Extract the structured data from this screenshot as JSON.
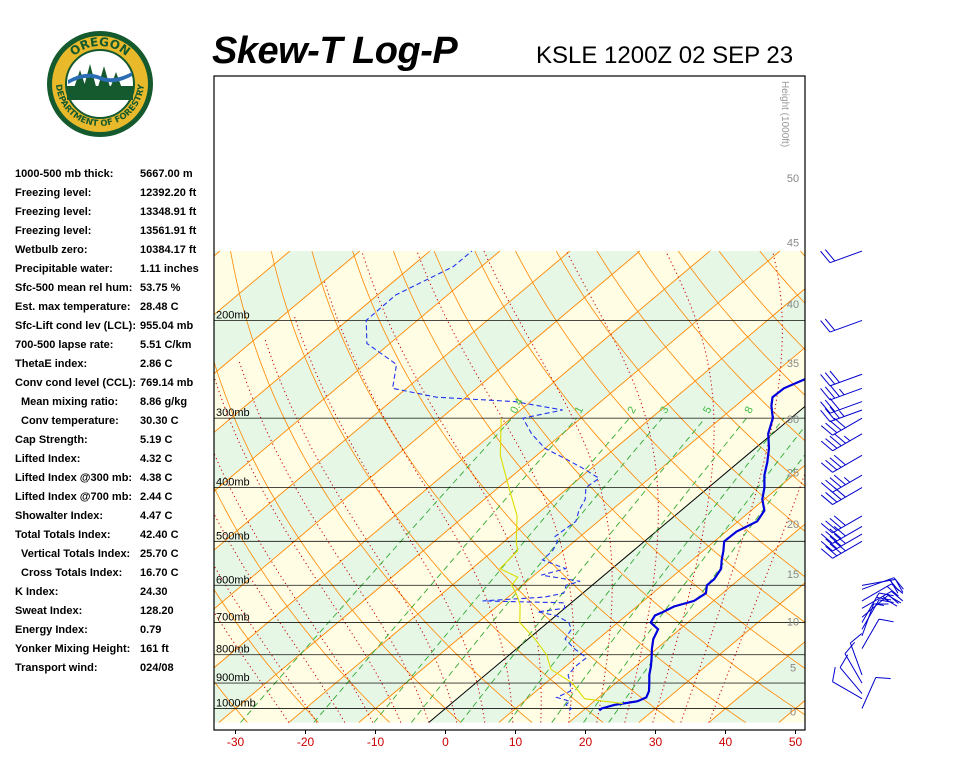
{
  "header": {
    "title": "Skew-T Log-P",
    "station": "KSLE 1200Z 02 SEP 23",
    "logo": {
      "line1": "OREGON",
      "line2": "DEPARTMENT OF FORESTRY"
    }
  },
  "stats": [
    {
      "label": "1000-500 mb thick:",
      "value": "5667.00 m"
    },
    {
      "label": "Freezing level:",
      "value": "12392.20 ft"
    },
    {
      "label": "Freezing level:",
      "value": "13348.91 ft"
    },
    {
      "label": "Freezing level:",
      "value": "13561.91 ft"
    },
    {
      "label": "Wetbulb zero:",
      "value": "10384.17 ft"
    },
    {
      "label": "Precipitable water:",
      "value": "1.11 inches"
    },
    {
      "label": "Sfc-500 mean rel hum:",
      "value": "53.75 %"
    },
    {
      "label": "Est. max temperature:",
      "value": "28.48 C"
    },
    {
      "label": "Sfc-Lift cond lev (LCL):",
      "value": "955.04 mb"
    },
    {
      "label": "700-500 lapse rate:",
      "value": "5.51 C/km"
    },
    {
      "label": "ThetaE index:",
      "value": "2.86 C"
    },
    {
      "label": "Conv cond level (CCL):",
      "value": "769.14 mb"
    },
    {
      "label": "Mean mixing ratio:",
      "value": "8.86 g/kg",
      "indent": true
    },
    {
      "label": "Conv temperature:",
      "value": "30.30 C",
      "indent": true
    },
    {
      "label": "Cap Strength:",
      "value": "5.19 C"
    },
    {
      "label": "Lifted Index:",
      "value": "4.32 C"
    },
    {
      "label": "Lifted Index @300 mb:",
      "value": "4.38 C"
    },
    {
      "label": "Lifted Index @700 mb:",
      "value": "2.44 C"
    },
    {
      "label": "Showalter Index:",
      "value": "4.47 C"
    },
    {
      "label": "Total Totals Index:",
      "value": "42.40 C"
    },
    {
      "label": "Vertical Totals Index:",
      "value": "25.70 C",
      "indent": true
    },
    {
      "label": "Cross Totals Index:",
      "value": "16.70 C",
      "indent": true
    },
    {
      "label": "K Index:",
      "value": "24.30"
    },
    {
      "label": "Sweat Index:",
      "value": "128.20"
    },
    {
      "label": "Energy Index:",
      "value": "0.79"
    },
    {
      "label": "Yonker Mixing Height:",
      "value": "161 ft"
    },
    {
      "label": "Transport wind:",
      "value": "024/08"
    }
  ],
  "chart_data": {
    "type": "line",
    "title": "Skew-T Log-P",
    "x_axis": {
      "ticks": [
        -30,
        -20,
        -10,
        0,
        10,
        20,
        30,
        40,
        50
      ],
      "unit": "C"
    },
    "pressure_levels": [
      {
        "p": 200,
        "label": "200mb"
      },
      {
        "p": 300,
        "label": "300mb"
      },
      {
        "p": 400,
        "label": "400mb"
      },
      {
        "p": 500,
        "label": "500mb"
      },
      {
        "p": 600,
        "label": "600mb"
      },
      {
        "p": 700,
        "label": "700mb"
      },
      {
        "p": 800,
        "label": "800mb"
      },
      {
        "p": 900,
        "label": "900mb"
      },
      {
        "p": 1000,
        "label": "1000mb"
      }
    ],
    "height_axis": {
      "label": "Height (1000ft)",
      "ticks": [
        0,
        5,
        10,
        15,
        20,
        25,
        30,
        35,
        40,
        45,
        50
      ]
    },
    "mixing_ratio_labels": [
      "0.4",
      "1",
      "2",
      "3",
      "5",
      "8"
    ],
    "colors": {
      "temperature": "#0000dd",
      "dewpoint": "#2233ee",
      "parcel": "#dddd00",
      "isotherm": "#ff8800",
      "dry_adiabat": "#ff8800",
      "moist_adiabat": "#cc0000",
      "mixing_ratio": "#33aa33",
      "band_green": "#e6f7e6",
      "band_yellow": "#fffde4",
      "wind_barb": "#0000cc",
      "tick_label": "#cc0000"
    },
    "series": [
      {
        "role": "temperature",
        "points": [
          [
            1008,
            22.3
          ],
          [
            1000,
            22.3
          ],
          [
            985,
            23.5
          ],
          [
            970,
            26.2
          ],
          [
            955,
            26.8
          ],
          [
            930,
            26.1
          ],
          [
            900,
            24.8
          ],
          [
            870,
            23.4
          ],
          [
            840,
            22.2
          ],
          [
            810,
            20.8
          ],
          [
            780,
            19.3
          ],
          [
            750,
            17.9
          ],
          [
            720,
            16.9
          ],
          [
            700,
            14.7
          ],
          [
            680,
            14.1
          ],
          [
            670,
            14.7
          ],
          [
            655,
            15.3
          ],
          [
            640,
            17.2
          ],
          [
            620,
            17.6
          ],
          [
            600,
            16.4
          ],
          [
            585,
            16.4
          ],
          [
            560,
            15.6
          ],
          [
            540,
            14.2
          ],
          [
            520,
            12.9
          ],
          [
            500,
            11.4
          ],
          [
            480,
            11.5
          ],
          [
            460,
            12.7
          ],
          [
            440,
            11.9
          ],
          [
            420,
            9.7
          ],
          [
            400,
            8.0
          ],
          [
            380,
            5.9
          ],
          [
            360,
            4.1
          ],
          [
            340,
            2.0
          ],
          [
            320,
            -0.6
          ],
          [
            300,
            -2.6
          ],
          [
            285,
            -4.9
          ],
          [
            275,
            -6.2
          ],
          [
            265,
            -6.1
          ],
          [
            255,
            -4.6
          ],
          [
            240,
            -3.5
          ],
          [
            220,
            -2.6
          ],
          [
            200,
            -1.7
          ],
          [
            180,
            -1.3
          ],
          [
            160,
            0.2
          ],
          [
            150,
            0.8
          ]
        ]
      },
      {
        "role": "dewpoint",
        "points": [
          [
            1008,
            18.0
          ],
          [
            1000,
            18.0
          ],
          [
            985,
            16.6
          ],
          [
            970,
            16.5
          ],
          [
            955,
            14.0
          ],
          [
            930,
            14.9
          ],
          [
            900,
            13.5
          ],
          [
            870,
            11.8
          ],
          [
            840,
            11.4
          ],
          [
            810,
            11.5
          ],
          [
            780,
            8.2
          ],
          [
            750,
            5.3
          ],
          [
            720,
            4.5
          ],
          [
            700,
            3.0
          ],
          [
            680,
            0.0
          ],
          [
            670,
            -3.3
          ],
          [
            660,
            0.0
          ],
          [
            645,
            -1.0
          ],
          [
            640,
            -13.0
          ],
          [
            630,
            -4.8
          ],
          [
            620,
            -2.7
          ],
          [
            600,
            -3.7
          ],
          [
            590,
            -2.4
          ],
          [
            575,
            -9.0
          ],
          [
            560,
            -6.6
          ],
          [
            540,
            -11.4
          ],
          [
            520,
            -11.5
          ],
          [
            500,
            -12.4
          ],
          [
            490,
            -13.6
          ],
          [
            460,
            -13.2
          ],
          [
            440,
            -14.6
          ],
          [
            420,
            -15.6
          ],
          [
            400,
            -17.5
          ],
          [
            385,
            -17.2
          ],
          [
            370,
            -21.0
          ],
          [
            355,
            -25.3
          ],
          [
            340,
            -30.0
          ],
          [
            320,
            -34.4
          ],
          [
            300,
            -38.3
          ],
          [
            290,
            -34.0
          ],
          [
            280,
            -42.3
          ],
          [
            275,
            -54.2
          ],
          [
            265,
            -62.0
          ],
          [
            240,
            -65.5
          ],
          [
            220,
            -73.3
          ],
          [
            200,
            -77.3
          ],
          [
            180,
            -77.4
          ],
          [
            160,
            -74.0
          ],
          [
            150,
            -74.0
          ]
        ]
      },
      {
        "role": "parcel",
        "points": [
          [
            980,
            24.5
          ],
          [
            960,
            18.2
          ],
          [
            900,
            13.8
          ],
          [
            850,
            8.4
          ],
          [
            800,
            5.3
          ],
          [
            750,
            1.0
          ],
          [
            700,
            -4.0
          ],
          [
            650,
            -7.0
          ],
          [
            620,
            -9.5
          ],
          [
            600,
            -11.5
          ],
          [
            580,
            -12.0
          ],
          [
            560,
            -16.0
          ],
          [
            520,
            -16.5
          ],
          [
            500,
            -18.3
          ],
          [
            450,
            -22.5
          ],
          [
            400,
            -28.5
          ],
          [
            350,
            -35.2
          ],
          [
            300,
            -41.4
          ]
        ]
      }
    ],
    "wind_barbs": [
      {
        "p": 1000,
        "dir": 24,
        "spd": 8
      },
      {
        "p": 960,
        "dir": 300,
        "spd": 10
      },
      {
        "p": 940,
        "dir": 320,
        "spd": 10
      },
      {
        "p": 900,
        "dir": 330,
        "spd": 10
      },
      {
        "p": 870,
        "dir": 340,
        "spd": 10
      },
      {
        "p": 780,
        "dir": 30,
        "spd": 10
      },
      {
        "p": 740,
        "dir": 20,
        "spd": 10
      },
      {
        "p": 720,
        "dir": 30,
        "spd": 15
      },
      {
        "p": 700,
        "dir": 30,
        "spd": 20
      },
      {
        "p": 685,
        "dir": 50,
        "spd": 20
      },
      {
        "p": 660,
        "dir": 60,
        "spd": 25
      },
      {
        "p": 640,
        "dir": 60,
        "spd": 20
      },
      {
        "p": 610,
        "dir": 70,
        "spd": 20
      },
      {
        "p": 600,
        "dir": 80,
        "spd": 20
      },
      {
        "p": 500,
        "dir": 240,
        "spd": 40
      },
      {
        "p": 485,
        "dir": 240,
        "spd": 40
      },
      {
        "p": 470,
        "dir": 240,
        "spd": 40
      },
      {
        "p": 450,
        "dir": 240,
        "spd": 40
      },
      {
        "p": 400,
        "dir": 240,
        "spd": 40
      },
      {
        "p": 380,
        "dir": 240,
        "spd": 45
      },
      {
        "p": 350,
        "dir": 240,
        "spd": 40
      },
      {
        "p": 320,
        "dir": 240,
        "spd": 45
      },
      {
        "p": 300,
        "dir": 240,
        "spd": 40
      },
      {
        "p": 290,
        "dir": 250,
        "spd": 35
      },
      {
        "p": 280,
        "dir": 250,
        "spd": 30
      },
      {
        "p": 265,
        "dir": 250,
        "spd": 35
      },
      {
        "p": 250,
        "dir": 250,
        "spd": 30
      },
      {
        "p": 200,
        "dir": 250,
        "spd": 20
      },
      {
        "p": 150,
        "dir": 250,
        "spd": 20
      }
    ]
  }
}
